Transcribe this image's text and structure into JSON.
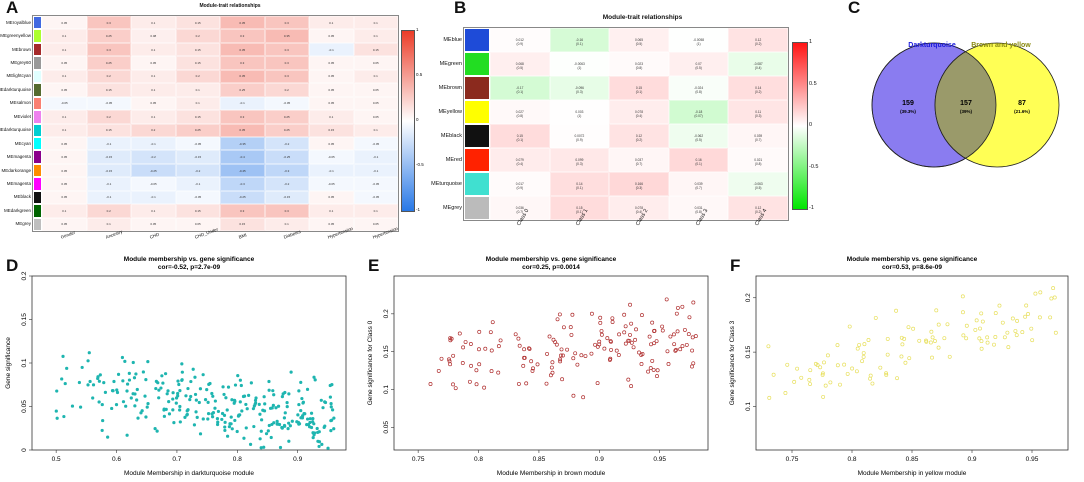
{
  "panels": {
    "A": {
      "label": "A",
      "title": "Module-trait relationships"
    },
    "B": {
      "label": "B",
      "title": "Module-trait relationships"
    },
    "C": {
      "label": "C"
    },
    "D": {
      "label": "D"
    },
    "E": {
      "label": "E"
    },
    "F": {
      "label": "F"
    }
  },
  "chart_data": [
    {
      "id": "A",
      "type": "heatmap",
      "title": "Module-trait relationships",
      "rows": [
        "MEroyalblue",
        "MEgreenyellow",
        "MEbrown",
        "MEgrey60",
        "MElightcyan",
        "MEdarkturquoise",
        "MEsalmon",
        "MEviolet",
        "MEdarkturquoise",
        "MEcyan",
        "MEmagenta",
        "MEdarkorange",
        "MEmagenta",
        "MEblack",
        "MEdarkgreen",
        "MEgrey"
      ],
      "row_colors": [
        "#4169e1",
        "#adff2f",
        "#a52a2a",
        "#999999",
        "#e0ffff",
        "#556b2f",
        "#fa8072",
        "#ee82ee",
        "#00ced1",
        "#00ffff",
        "#8b008b",
        "#ff8c00",
        "#ff00ff",
        "#111111",
        "#006400",
        "#bebebe"
      ],
      "columns": [
        "Gender",
        "Ancestry",
        "CHD",
        "CHD_Under",
        "BMI",
        "Diabetes",
        "Hypertension",
        "Hypertension"
      ],
      "values": [
        [
          0.05,
          0.3,
          0.1,
          0.15,
          0.35,
          0.3,
          0.1,
          0.1
        ],
        [
          0.1,
          0.25,
          0.08,
          0.2,
          0.3,
          0.35,
          0.05,
          0.1
        ],
        [
          0.1,
          0.3,
          0.1,
          0.15,
          0.35,
          0.3,
          -0.1,
          0.15
        ],
        [
          0.05,
          0.25,
          0.05,
          0.15,
          0.3,
          0.3,
          0.05,
          0.05
        ],
        [
          0.1,
          0.2,
          0.1,
          0.2,
          0.35,
          0.3,
          0.05,
          0.1
        ],
        [
          0.05,
          0.15,
          0.1,
          0.1,
          0.25,
          0.2,
          0.05,
          0.05
        ],
        [
          -0.05,
          -0.05,
          0.05,
          0.1,
          -0.1,
          -0.05,
          0.05,
          0.05
        ],
        [
          0.1,
          0.2,
          0.1,
          0.15,
          0.3,
          0.25,
          0.1,
          0.05
        ],
        [
          0.1,
          0.15,
          0.2,
          0.25,
          0.35,
          0.25,
          0.15,
          0.1
        ],
        [
          0.05,
          -0.1,
          -0.1,
          -0.05,
          -0.35,
          -0.2,
          0.05,
          -0.05
        ],
        [
          0.05,
          -0.15,
          -0.2,
          -0.15,
          -0.4,
          -0.25,
          -0.05,
          -0.1
        ],
        [
          0.05,
          -0.15,
          -0.25,
          -0.2,
          -0.45,
          -0.3,
          -0.1,
          -0.1
        ],
        [
          0.05,
          -0.1,
          -0.05,
          -0.1,
          -0.3,
          -0.2,
          -0.05,
          -0.05
        ],
        [
          0.05,
          -0.1,
          -0.1,
          -0.05,
          -0.25,
          -0.15,
          0.05,
          -0.05
        ],
        [
          0.1,
          0.2,
          0.1,
          0.15,
          0.3,
          0.3,
          0.1,
          0.1
        ],
        [
          0.05,
          0.1,
          0.05,
          0.05,
          0.15,
          0.1,
          0.05,
          0.05
        ]
      ],
      "scale": [
        -1,
        1
      ],
      "scale_ticks": [
        "1",
        "0.5",
        "0",
        "-0.5",
        "-1"
      ]
    },
    {
      "id": "B",
      "type": "heatmap",
      "title": "Module-trait relationships",
      "rows": [
        "MEblue",
        "MEgreen",
        "MEbrown",
        "MEyellow",
        "MEblack",
        "MEred",
        "MEturquoise",
        "MEgrey"
      ],
      "row_colors": [
        "#1e4bd8",
        "#22dd22",
        "#8b2a1e",
        "#ffff00",
        "#111111",
        "#ff2200",
        "#40e0d0",
        "#bbbbbb"
      ],
      "columns": [
        "Class 0",
        "Class 1",
        "Class 2",
        "Class 3",
        "Class 4"
      ],
      "values": [
        [
          0.012,
          -0.16,
          0.065,
          -0.0058,
          0.12
        ],
        [
          0.068,
          -0.0063,
          0.023,
          0.07,
          -0.087
        ],
        [
          -0.17,
          -0.096,
          0.15,
          -0.024,
          0.14
        ],
        [
          0.027,
          0.003,
          0.078,
          -0.18,
          0.11
        ],
        [
          0.15,
          0.0072,
          0.12,
          -0.062,
          0.039
        ],
        [
          0.079,
          0.099,
          0.037,
          0.16,
          0.021
        ],
        [
          0.017,
          0.14,
          0.166,
          0.039,
          -0.063
        ],
        [
          0.036,
          0.15,
          0.078,
          0.031,
          0.12
        ]
      ],
      "pvalues": [
        [
          "(0.9)",
          "(0.1)",
          "(0.5)",
          "(1)",
          "(0.2)"
        ],
        [
          "(0.5)",
          "(1)",
          "(0.8)",
          "(0.5)",
          "(0.4)"
        ],
        [
          "(0.1)",
          "(0.3)",
          "(0.1)",
          "(0.8)",
          "(0.2)"
        ],
        [
          "(0.8)",
          "(1)",
          "(0.4)",
          "(0.07)",
          "(0.3)"
        ],
        [
          "(0.1)",
          "(0.9)",
          "(0.2)",
          "(0.5)",
          "(0.7)"
        ],
        [
          "(0.4)",
          "(0.3)",
          "(0.7)",
          "(0.1)",
          "(0.8)"
        ],
        [
          "(0.9)",
          "(0.1)",
          "(0.3)",
          "(0.7)",
          "(0.5)"
        ],
        [
          "(0.7)",
          "(0.1)",
          "(0.4)",
          "(0.8)",
          "(0.2)"
        ]
      ],
      "scale": [
        -1,
        1
      ],
      "scale_ticks": [
        "1",
        "0.5",
        "0",
        "-0.5",
        "-1"
      ]
    },
    {
      "id": "C",
      "type": "venn",
      "sets": [
        {
          "name": "Darkturquoise",
          "color": "#8a7cf0"
        },
        {
          "name": "Brown and yellow",
          "color": "#ffff55"
        }
      ],
      "regions": [
        {
          "count": "159",
          "percent": "(39.3%)"
        },
        {
          "count": "157",
          "percent": "(39%)"
        },
        {
          "count": "87",
          "percent": "(21.6%)"
        }
      ]
    },
    {
      "id": "D",
      "type": "scatter",
      "title": "Module membership vs. gene significance",
      "subtitle": "cor=-0.52, p=2.7e-09",
      "xlabel": "Module Membership in darkturquoise module",
      "ylabel": "Gene significance",
      "xlim": [
        0.46,
        0.98
      ],
      "ylim": [
        0,
        0.2
      ],
      "xticks": [
        0.5,
        0.6,
        0.7,
        0.8,
        0.9
      ],
      "yticks": [
        0,
        0.05,
        0.1,
        0.15,
        0.2
      ],
      "color": "#1eb5b0",
      "marker": "filled",
      "n": 300,
      "seed": 11,
      "trend": {
        "x0": 0.55,
        "y0": 0.07,
        "slope": -0.08,
        "spread": 0.03,
        "xmin": 0.5,
        "xmax": 0.96
      }
    },
    {
      "id": "E",
      "type": "scatter",
      "title": "Module membership vs. gene significance",
      "subtitle": "cor=0.25, p=0.0014",
      "xlabel": "Module Membership in brown module",
      "ylabel": "Gene significance for Class 0",
      "xlim": [
        0.73,
        0.99
      ],
      "ylim": [
        0.02,
        0.25
      ],
      "xticks": [
        0.75,
        0.8,
        0.85,
        0.9,
        0.95
      ],
      "yticks": [
        0.05,
        0.1,
        0.15,
        0.2
      ],
      "color": "#b03030",
      "marker": "open",
      "n": 160,
      "seed": 23,
      "trend": {
        "x0": 0.8,
        "y0": 0.14,
        "slope": 0.15,
        "spread": 0.035,
        "xmin": 0.76,
        "xmax": 0.98
      }
    },
    {
      "id": "F",
      "type": "scatter",
      "title": "Module membership vs. gene significance",
      "subtitle": "cor=0.53, p=8.6e-09",
      "xlabel": "Module Membership in yellow module",
      "ylabel": "Gene significance for Class 3",
      "xlim": [
        0.72,
        0.98
      ],
      "ylim": [
        0.06,
        0.22
      ],
      "xticks": [
        0.75,
        0.8,
        0.85,
        0.9,
        0.95
      ],
      "yticks": [
        0.1,
        0.15,
        0.2
      ],
      "color": "#e8e060",
      "marker": "open",
      "n": 110,
      "seed": 37,
      "trend": {
        "x0": 0.8,
        "y0": 0.14,
        "slope": 0.3,
        "spread": 0.02,
        "xmin": 0.73,
        "xmax": 0.97
      }
    }
  ]
}
